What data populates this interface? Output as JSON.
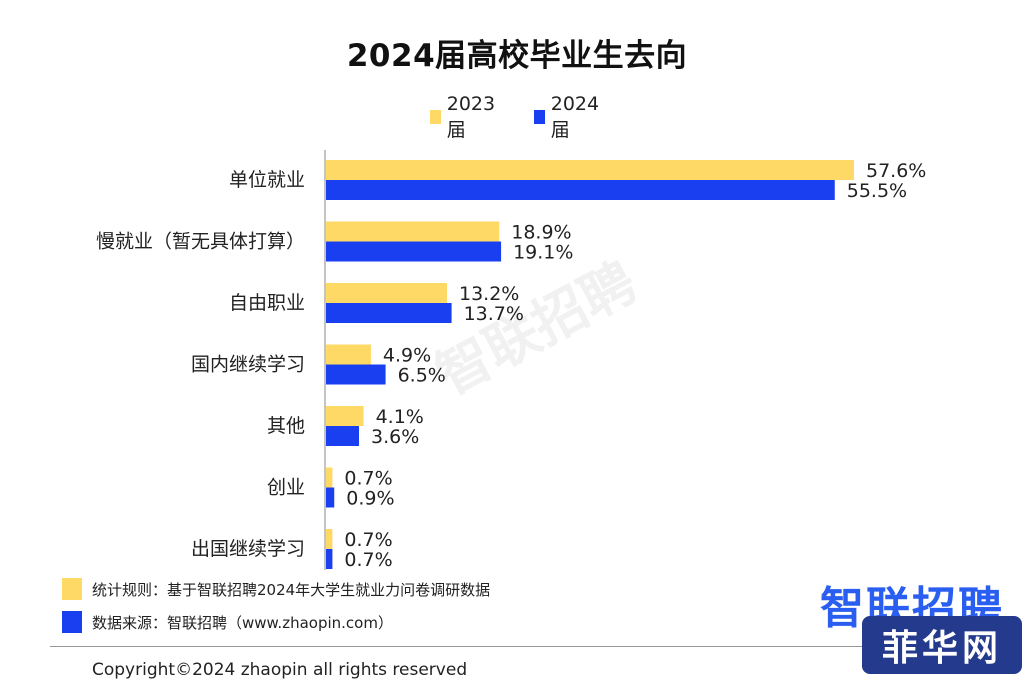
{
  "title": "2024届高校毕业生去向",
  "watermark": "智联招聘",
  "brand_logo": "智联招聘",
  "site_badge": "菲华网",
  "notes": {
    "rule": "统计规则：基于智联招聘2024年大学生就业力问卷调研数据",
    "source": "数据来源：智联招聘（www.zhaopin.com）"
  },
  "copyright": "Copyright©2024 zhaopin all rights reserved",
  "colors": {
    "series_2023": "#FFD966",
    "series_2024": "#1A3FF0",
    "note_rule": "#FFD966",
    "note_source": "#1A3FF0",
    "brand": "#2A5EF0",
    "badge_bg": "#243A8C"
  },
  "chart_data": {
    "type": "bar",
    "orientation": "horizontal",
    "title": "2024届高校毕业生去向",
    "categories": [
      "单位就业",
      "慢就业（暂无具体打算）",
      "自由职业",
      "国内继续学习",
      "其他",
      "创业",
      "出国继续学习"
    ],
    "series": [
      {
        "name": "2023届",
        "values": [
          57.6,
          18.9,
          13.2,
          4.9,
          4.1,
          0.7,
          0.7
        ],
        "labels": [
          "57.6%",
          "18.9%",
          "13.2%",
          "4.9%",
          "4.1%",
          "0.7%",
          "0.7%"
        ]
      },
      {
        "name": "2024届",
        "values": [
          55.5,
          19.1,
          13.7,
          6.5,
          3.6,
          0.9,
          0.7
        ],
        "labels": [
          "55.5%",
          "19.1%",
          "13.7%",
          "6.5%",
          "3.6%",
          "0.9%",
          "0.7%"
        ]
      }
    ],
    "value_unit": "%",
    "xlim": [
      0,
      60
    ],
    "legend": "top-center",
    "grid": false
  }
}
